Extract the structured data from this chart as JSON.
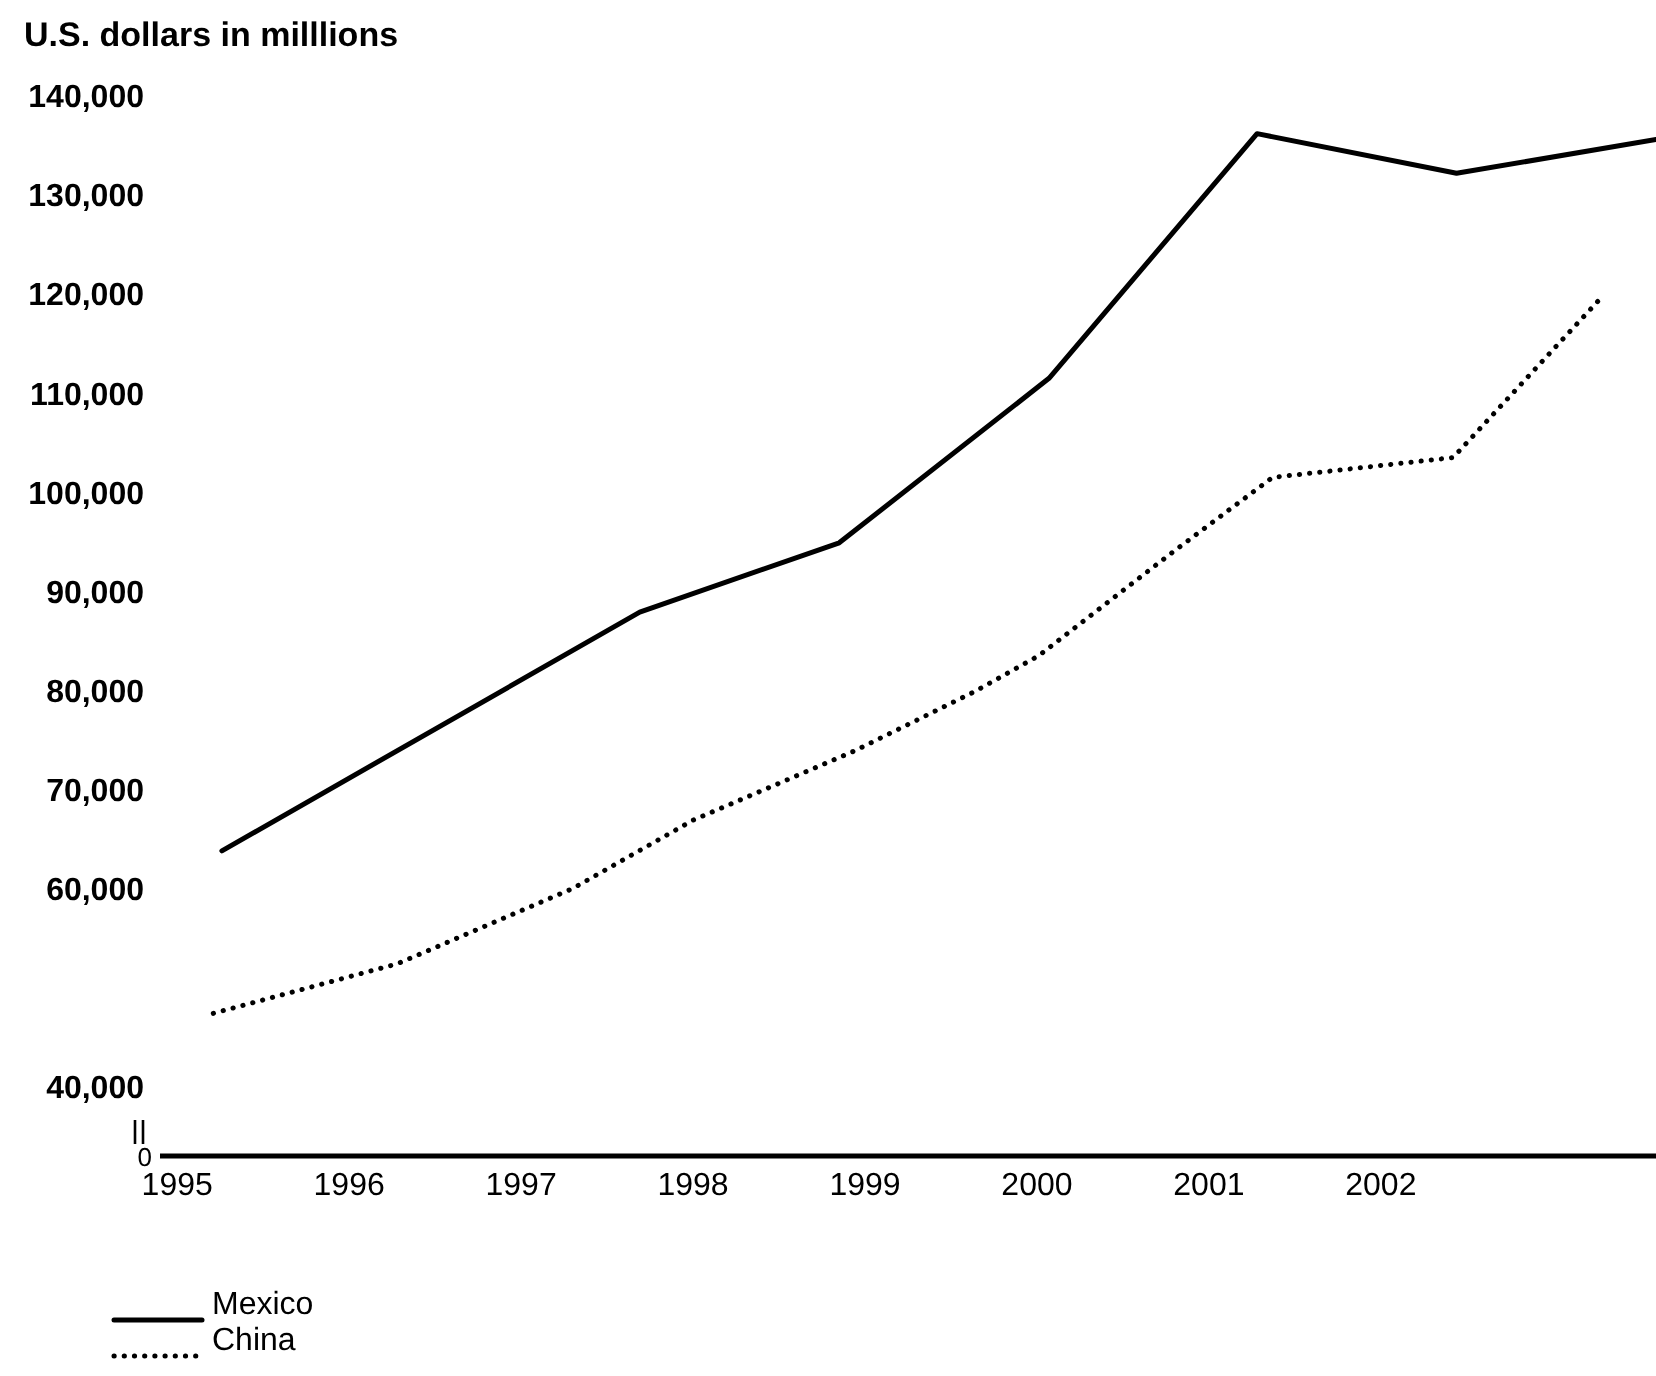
{
  "chart_data": {
    "type": "line",
    "ylabel": "U.S. dollars in milllions",
    "xlim": [
      1994.9,
      2003.6
    ],
    "xticks": [
      1995,
      1996,
      1997,
      1998,
      1999,
      2000,
      2001,
      2002
    ],
    "ylim": [
      33000,
      140000
    ],
    "yticks": [
      {
        "value": 40000,
        "label": "40,000"
      },
      {
        "value": 60000,
        "label": "60,000"
      },
      {
        "value": 70000,
        "label": "70,000"
      },
      {
        "value": 80000,
        "label": "80,000"
      },
      {
        "value": 90000,
        "label": "90,000"
      },
      {
        "value": 100000,
        "label": "100,000"
      },
      {
        "value": 110000,
        "label": "110,000"
      },
      {
        "value": 120000,
        "label": "120,000"
      },
      {
        "value": 130000,
        "label": "130,000"
      },
      {
        "value": 140000,
        "label": "140,000"
      }
    ],
    "series": [
      {
        "name": "Mexico",
        "color": "#000000",
        "line_style": "solid",
        "x": [
          1995.26,
          1997.69,
          1998.85,
          2000.07,
          2001.28,
          2002.44,
          2003.6
        ],
        "values": [
          63800,
          87900,
          94900,
          111500,
          136200,
          132200,
          135600
        ]
      },
      {
        "name": "China",
        "color": "#000000",
        "line_style": "dotted",
        "x": [
          1995.21,
          1996.28,
          1997.3,
          1998.0,
          1998.94,
          1999.64,
          2000.01,
          2000.8,
          2001.37,
          2002.42,
          2003.29
        ],
        "values": [
          47400,
          52400,
          60000,
          66900,
          73900,
          79900,
          83500,
          94100,
          101500,
          103500,
          119800
        ]
      }
    ],
    "annotations": [
      "0"
    ],
    "grid": false,
    "legend": "bottom left",
    "marker": "none"
  }
}
